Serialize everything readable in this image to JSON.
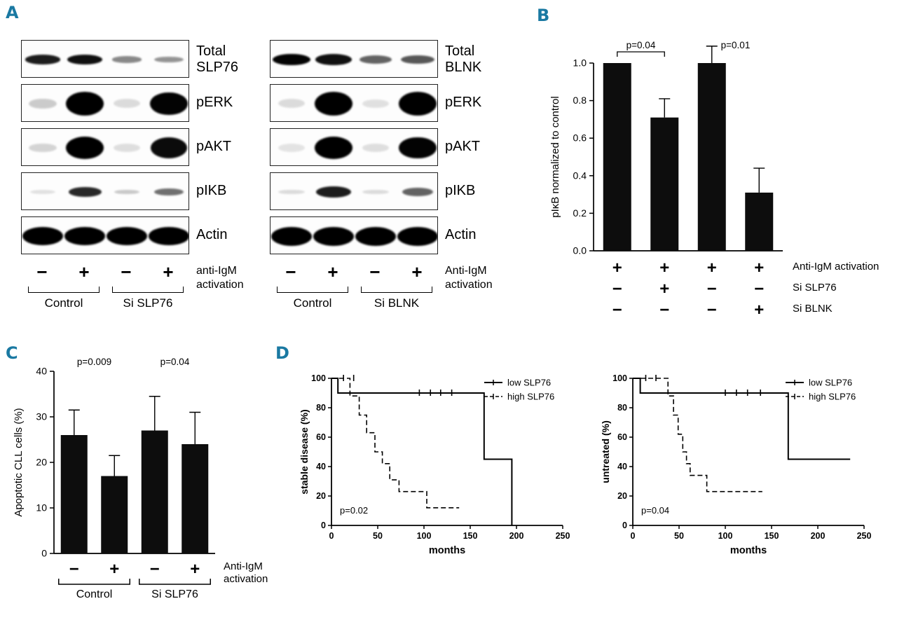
{
  "colors": {
    "panel_label": "#1a79a2",
    "ink": "#000000",
    "bar_fill": "#0d0d0d"
  },
  "panels": {
    "a": {
      "label": "A"
    },
    "b": {
      "label": "B"
    },
    "c": {
      "label": "C"
    },
    "d": {
      "label": "D"
    }
  },
  "panel_a": {
    "sets": [
      {
        "id": "slp76",
        "rows": [
          {
            "label": "Total SLP76",
            "band_h": 15,
            "band_w": 52,
            "bands": [
              0.85,
              0.9,
              0.4,
              0.35
            ]
          },
          {
            "label": "pERK",
            "band_h": 34,
            "band_w": 54,
            "bands": [
              0.12,
              1,
              0.05,
              0.95
            ]
          },
          {
            "label": "pAKT",
            "band_h": 32,
            "band_w": 54,
            "bands": [
              0.08,
              1,
              0.04,
              0.92
            ]
          },
          {
            "label": "pIKB",
            "band_h": 16,
            "band_w": 50,
            "bands": [
              0.03,
              0.8,
              0.13,
              0.5
            ]
          },
          {
            "label": "Actin",
            "band_h": 26,
            "band_w": 58,
            "bands": [
              1,
              0.98,
              1,
              0.97
            ]
          }
        ],
        "signs": [
          "−",
          "+",
          "−",
          "+"
        ],
        "groups": [
          "Control",
          "Si SLP76"
        ],
        "activation_label": "anti-IgM activation"
      },
      {
        "id": "blnk",
        "rows": [
          {
            "label": "Total BLNK",
            "band_h": 17,
            "band_w": 54,
            "bands": [
              0.95,
              0.9,
              0.55,
              0.6
            ]
          },
          {
            "label": "pERK",
            "band_h": 34,
            "band_w": 54,
            "bands": [
              0.05,
              1,
              0.03,
              1
            ]
          },
          {
            "label": "pAKT",
            "band_h": 32,
            "band_w": 54,
            "bands": [
              0.02,
              1,
              0.04,
              0.95
            ]
          },
          {
            "label": "pIKB",
            "band_h": 18,
            "band_w": 52,
            "bands": [
              0.05,
              0.85,
              0.05,
              0.55
            ]
          },
          {
            "label": "Actin",
            "band_h": 27,
            "band_w": 58,
            "bands": [
              1,
              1,
              1,
              1
            ]
          }
        ],
        "signs": [
          "−",
          "+",
          "−",
          "+"
        ],
        "groups": [
          "Control",
          "Si BLNK"
        ],
        "activation_label": "Anti-IgM activation"
      }
    ]
  },
  "chart_data": [
    {
      "id": "pikb",
      "type": "bar",
      "ylabel": "pIκB  normalized to control",
      "ylim": [
        0,
        1.0
      ],
      "yticks": [
        0.0,
        0.2,
        0.4,
        0.6,
        0.8,
        1.0
      ],
      "values": [
        1.0,
        0.71,
        1.0,
        0.31
      ],
      "errors": [
        0,
        0.1,
        0.09,
        0.13
      ],
      "significance": [
        {
          "from": 0,
          "to": 1,
          "label": "p=0.04",
          "bracket": true
        },
        {
          "from": 2,
          "to": 3,
          "label": "p=0.01",
          "bracket": false
        }
      ],
      "condition_rows": [
        {
          "signs": [
            "+",
            "+",
            "+",
            "+"
          ],
          "label": "Anti-IgM activation"
        },
        {
          "signs": [
            "−",
            "+",
            "−",
            "−"
          ],
          "label": "Si SLP76"
        },
        {
          "signs": [
            "−",
            "−",
            "−",
            "+"
          ],
          "label": "Si BLNK"
        }
      ]
    },
    {
      "id": "apoptosis",
      "type": "bar",
      "ylabel": "Apoptotic CLL cells (%)",
      "ylim": [
        0,
        40
      ],
      "yticks": [
        0,
        10,
        20,
        30,
        40
      ],
      "values": [
        26,
        17,
        27,
        24
      ],
      "errors": [
        5.5,
        4.5,
        7.5,
        7
      ],
      "significance": [
        {
          "from": 0,
          "to": 1,
          "label": "p=0.009",
          "bracket": false
        },
        {
          "from": 2,
          "to": 3,
          "label": "p=0.04",
          "bracket": false
        }
      ],
      "condition_rows": [
        {
          "signs": [
            "−",
            "+",
            "−",
            "+"
          ],
          "label_lines": [
            "Anti-IgM",
            "activation"
          ],
          "brackets": [
            "Control",
            "Si SLP76"
          ]
        }
      ]
    },
    {
      "id": "km_stable",
      "type": "line",
      "ylabel": "stable disease (%)",
      "xlabel": "months",
      "xlim": [
        0,
        250
      ],
      "ylim": [
        0,
        100
      ],
      "xticks": [
        0,
        50,
        100,
        150,
        200,
        250
      ],
      "yticks": [
        0,
        20,
        40,
        60,
        80,
        100
      ],
      "annotation": "p=0.02",
      "series": [
        {
          "name": "low SLP76",
          "style": "solid",
          "points": [
            [
              0,
              100
            ],
            [
              7,
              100
            ],
            [
              7,
              90
            ],
            [
              165,
              90
            ],
            [
              165,
              45
            ],
            [
              195,
              45
            ],
            [
              195,
              0
            ]
          ],
          "censors": [
            [
              95,
              90
            ],
            [
              107,
              90
            ],
            [
              118,
              90
            ],
            [
              130,
              90
            ]
          ]
        },
        {
          "name": "high SLP76",
          "style": "dashed",
          "points": [
            [
              0,
              100
            ],
            [
              20,
              100
            ],
            [
              20,
              88
            ],
            [
              30,
              88
            ],
            [
              30,
              75
            ],
            [
              38,
              75
            ],
            [
              38,
              63
            ],
            [
              47,
              63
            ],
            [
              47,
              50
            ],
            [
              55,
              50
            ],
            [
              55,
              42
            ],
            [
              63,
              42
            ],
            [
              63,
              31
            ],
            [
              73,
              31
            ],
            [
              73,
              23
            ],
            [
              103,
              23
            ],
            [
              103,
              12
            ],
            [
              138,
              12
            ]
          ],
          "censors": [
            [
              13,
              100
            ],
            [
              24,
              100
            ]
          ]
        }
      ]
    },
    {
      "id": "km_untreated",
      "type": "line",
      "ylabel": "untreated (%)",
      "xlabel": "months",
      "xlim": [
        0,
        250
      ],
      "ylim": [
        0,
        100
      ],
      "xticks": [
        0,
        50,
        100,
        150,
        200,
        250
      ],
      "yticks": [
        0,
        20,
        40,
        60,
        80,
        100
      ],
      "annotation": "p=0.04",
      "series": [
        {
          "name": "low SLP76",
          "style": "solid",
          "points": [
            [
              0,
              100
            ],
            [
              8,
              100
            ],
            [
              8,
              90
            ],
            [
              168,
              90
            ],
            [
              168,
              45
            ],
            [
              235,
              45
            ]
          ],
          "censors": [
            [
              100,
              90
            ],
            [
              112,
              90
            ],
            [
              124,
              90
            ],
            [
              138,
              90
            ]
          ]
        },
        {
          "name": "high SLP76",
          "style": "dashed",
          "points": [
            [
              0,
              100
            ],
            [
              38,
              100
            ],
            [
              38,
              88
            ],
            [
              44,
              88
            ],
            [
              44,
              75
            ],
            [
              49,
              75
            ],
            [
              49,
              62
            ],
            [
              54,
              62
            ],
            [
              54,
              50
            ],
            [
              58,
              50
            ],
            [
              58,
              42
            ],
            [
              62,
              42
            ],
            [
              62,
              34
            ],
            [
              80,
              34
            ],
            [
              80,
              23
            ],
            [
              140,
              23
            ]
          ],
          "censors": [
            [
              14,
              100
            ],
            [
              25,
              100
            ]
          ]
        }
      ]
    }
  ]
}
